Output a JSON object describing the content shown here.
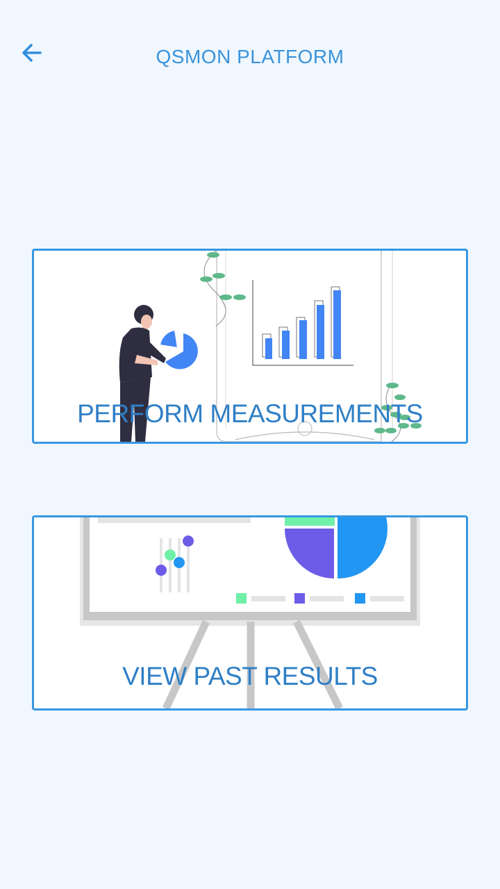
{
  "header": {
    "back_icon": "arrow-left-icon",
    "title": "QSMON PLATFORM",
    "accent_color": "#3a93db"
  },
  "cards": [
    {
      "label": "PERFORM MEASUREMENTS",
      "illustration": "person-presenting-bar-chart-illustration"
    },
    {
      "label": "VIEW PAST RESULTS",
      "illustration": "whiteboard-pie-chart-illustration"
    }
  ],
  "colors": {
    "background": "#f0f7fe",
    "card_border": "#3797e2",
    "label": "#2f7fc6",
    "chart_blue": "#4285f4",
    "leaf_green": "#5db88a",
    "purple": "#6c5ce7",
    "mint": "#6ef0a8",
    "sky": "#2196f3"
  }
}
